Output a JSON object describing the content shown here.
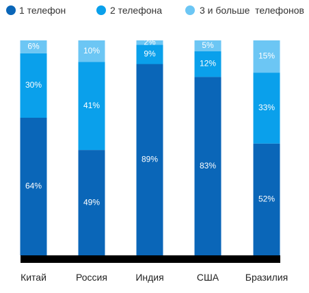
{
  "legend": [
    {
      "label": "1 телефон",
      "color": "#0a66b8"
    },
    {
      "label": "2 телефона",
      "color": "#0aa0eb"
    },
    {
      "label": "3 и больше  телефонов",
      "color": "#6cc6f4"
    }
  ],
  "chart_data": {
    "type": "bar",
    "stacked": true,
    "categories": [
      "Китай",
      "Россия",
      "Индия",
      "США",
      "Бразилия"
    ],
    "series": [
      {
        "name": "1 телефон",
        "values": [
          64,
          49,
          89,
          83,
          52
        ],
        "labels": [
          "64%",
          "49%",
          "89%",
          "83%",
          "52%"
        ],
        "color": "#0a66b8"
      },
      {
        "name": "2 телефона",
        "values": [
          30,
          41,
          9,
          12,
          33
        ],
        "labels": [
          "30%",
          "41%",
          "9%",
          "12%",
          "33%"
        ],
        "color": "#0aa0eb"
      },
      {
        "name": "3 и больше  телефонов",
        "values": [
          6,
          10,
          2,
          5,
          15
        ],
        "labels": [
          "6%",
          "10%",
          "2%",
          "5%",
          "15%"
        ],
        "color": "#6cc6f4"
      }
    ],
    "ylim": [
      0,
      100
    ],
    "baseline_color": "#000000"
  }
}
